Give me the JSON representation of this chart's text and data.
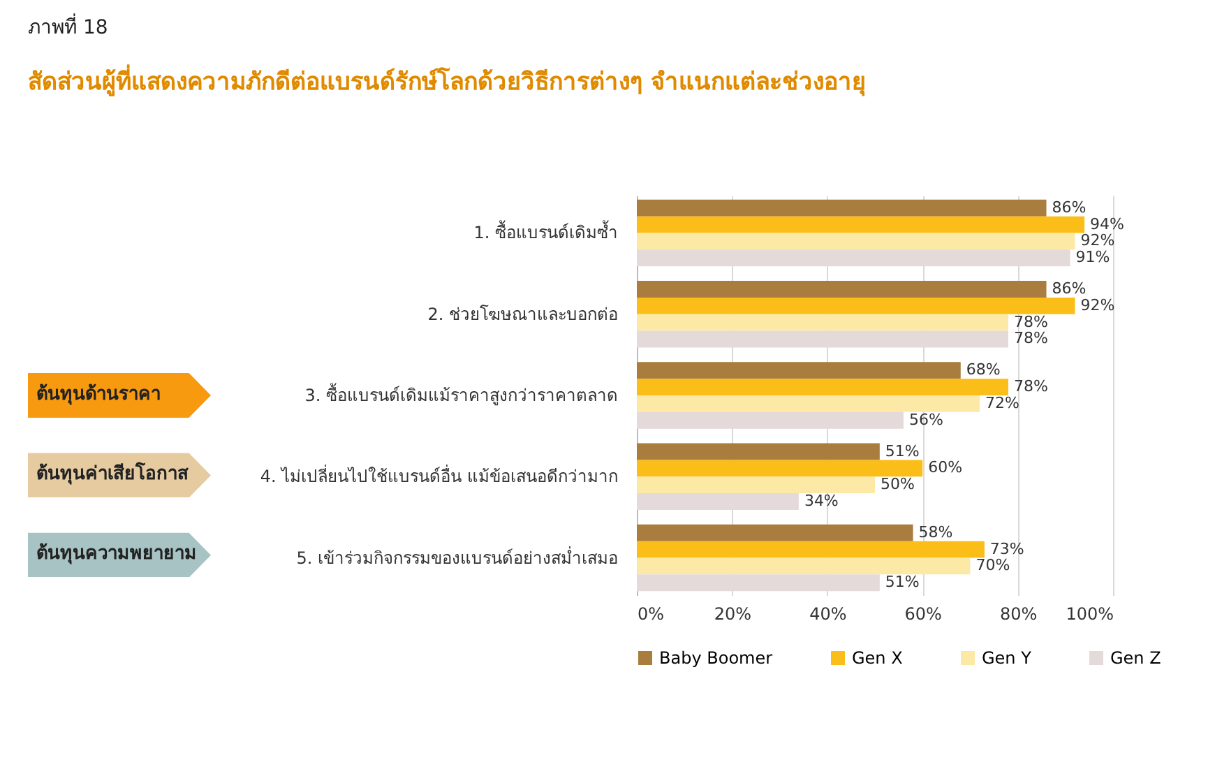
{
  "chart_data": {
    "type": "bar",
    "orientation": "horizontal",
    "title": "ภาพที่ 18",
    "subtitle": "สัดส่วนผู้ที่แสดงความภักดีต่อแบรนด์รักษ์โลกด้วยวิธีการต่างๆ จำแนกแต่ละช่วงอายุ",
    "categories": [
      "1. ซื้อแบรนด์เดิมซ้ำ",
      "2. ช่วยโฆษณาและบอกต่อ",
      "3. ซื้อแบรนด์เดิมแม้ราคาสูงกว่าราคาตลาด",
      "4. ไม่เปลี่ยนไปใช้แบรนด์อื่น แม้ข้อเสนอดีกว่ามาก",
      "5. เข้าร่วมกิจกรรมของแบรนด์อย่างสม่ำเสมอ"
    ],
    "series": [
      {
        "name": "Baby Boomer",
        "color": "#a87d3e",
        "values": [
          86,
          86,
          68,
          51,
          58
        ],
        "value_labels": [
          "86%",
          "86%",
          "68%",
          "51%",
          "58%"
        ]
      },
      {
        "name": "Gen X",
        "color": "#fbbd18",
        "values": [
          94,
          92,
          78,
          60,
          73
        ],
        "value_labels": [
          "94%",
          "92%",
          "78%",
          "60%",
          "73%"
        ]
      },
      {
        "name": "Gen Y",
        "color": "#fde9a6",
        "values": [
          92,
          78,
          72,
          50,
          70
        ],
        "value_labels": [
          "92%",
          "78%",
          "72%",
          "50%",
          "70%"
        ]
      },
      {
        "name": "Gen Z",
        "color": "#e4dada",
        "values": [
          91,
          78,
          56,
          34,
          51
        ],
        "value_labels": [
          "91%",
          "78%",
          "56%",
          "34%",
          "51%"
        ]
      }
    ],
    "xlim": [
      0,
      100
    ],
    "xticks": [
      {
        "value": 0,
        "label": "0%"
      },
      {
        "value": 20,
        "label": "20%"
      },
      {
        "value": 40,
        "label": "40%"
      },
      {
        "value": 60,
        "label": "60%"
      },
      {
        "value": 80,
        "label": "80%"
      },
      {
        "value": 100,
        "label": "100%"
      }
    ],
    "grid": "x",
    "legend": "bottom",
    "annotations": [
      "ต้นทุนด้านราคา",
      "ต้นทุนค่าเสียโอกาส",
      "ต้นทุนความพยายาม"
    ]
  }
}
